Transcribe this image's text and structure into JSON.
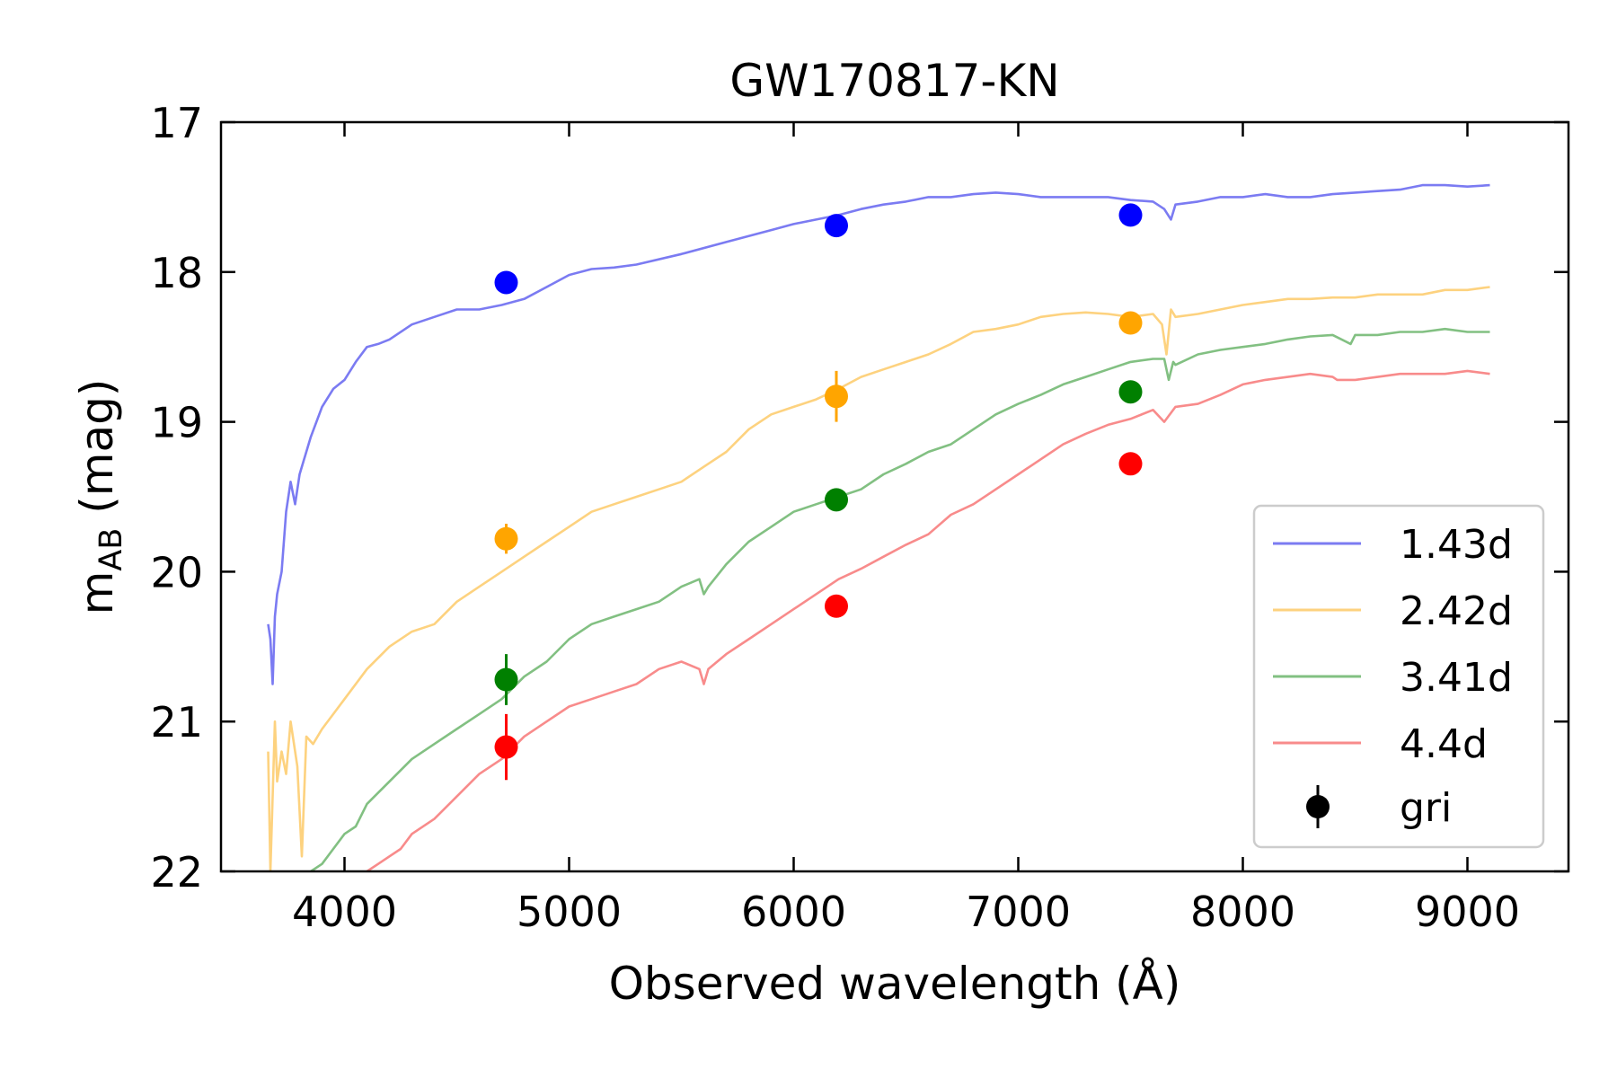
{
  "chart_data": {
    "type": "line",
    "title": "GW170817-KN",
    "xlabel": "Observed wavelength (Å)",
    "ylabel_main": "m",
    "ylabel_sub": "AB",
    "ylabel_unit": " (mag)",
    "xlim": [
      3450,
      9450
    ],
    "ylim": [
      22,
      17
    ],
    "y_inverted": true,
    "x_ticks": [
      4000,
      5000,
      6000,
      7000,
      8000,
      9000
    ],
    "y_ticks": [
      17,
      18,
      19,
      20,
      21,
      22
    ],
    "grid": false,
    "legend_position": "lower-right",
    "series": [
      {
        "name": "1.43d",
        "color": "#7b7bf2",
        "x": [
          3660,
          3670,
          3680,
          3690,
          3700,
          3720,
          3740,
          3760,
          3780,
          3800,
          3820,
          3850,
          3900,
          3950,
          4000,
          4050,
          4100,
          4150,
          4200,
          4300,
          4400,
          4500,
          4600,
          4700,
          4800,
          4900,
          5000,
          5100,
          5200,
          5300,
          5500,
          5700,
          5900,
          6000,
          6100,
          6200,
          6300,
          6400,
          6500,
          6600,
          6700,
          6800,
          6900,
          7000,
          7100,
          7200,
          7300,
          7400,
          7500,
          7600,
          7650,
          7680,
          7700,
          7800,
          7900,
          8000,
          8100,
          8200,
          8300,
          8400,
          8500,
          8600,
          8700,
          8800,
          8900,
          9000,
          9100
        ],
        "y": [
          20.35,
          20.45,
          20.75,
          20.3,
          20.15,
          20.0,
          19.6,
          19.4,
          19.55,
          19.35,
          19.25,
          19.1,
          18.9,
          18.78,
          18.72,
          18.6,
          18.5,
          18.48,
          18.45,
          18.35,
          18.3,
          18.25,
          18.25,
          18.22,
          18.18,
          18.1,
          18.02,
          17.98,
          17.97,
          17.95,
          17.88,
          17.8,
          17.72,
          17.68,
          17.65,
          17.62,
          17.58,
          17.55,
          17.53,
          17.5,
          17.5,
          17.48,
          17.47,
          17.48,
          17.5,
          17.5,
          17.5,
          17.5,
          17.52,
          17.53,
          17.58,
          17.65,
          17.55,
          17.53,
          17.5,
          17.5,
          17.48,
          17.5,
          17.5,
          17.48,
          17.47,
          17.46,
          17.45,
          17.42,
          17.42,
          17.43,
          17.42
        ]
      },
      {
        "name": "2.42d",
        "color": "#fdd27f",
        "x": [
          3660,
          3670,
          3680,
          3690,
          3700,
          3720,
          3740,
          3760,
          3790,
          3810,
          3830,
          3860,
          3900,
          3950,
          4000,
          4100,
          4200,
          4300,
          4400,
          4500,
          4600,
          4700,
          4800,
          4900,
          5000,
          5100,
          5200,
          5300,
          5400,
          5500,
          5600,
          5700,
          5800,
          5900,
          6000,
          6100,
          6200,
          6300,
          6400,
          6500,
          6600,
          6700,
          6800,
          6900,
          7000,
          7100,
          7200,
          7300,
          7400,
          7500,
          7600,
          7640,
          7660,
          7680,
          7700,
          7800,
          7900,
          8000,
          8100,
          8200,
          8300,
          8400,
          8500,
          8600,
          8700,
          8800,
          8900,
          9000,
          9100
        ],
        "y": [
          21.2,
          22.0,
          21.5,
          21.0,
          21.4,
          21.2,
          21.35,
          21.0,
          21.3,
          21.9,
          21.1,
          21.15,
          21.05,
          20.95,
          20.85,
          20.65,
          20.5,
          20.4,
          20.35,
          20.2,
          20.1,
          20.0,
          19.9,
          19.8,
          19.7,
          19.6,
          19.55,
          19.5,
          19.45,
          19.4,
          19.3,
          19.2,
          19.05,
          18.95,
          18.9,
          18.85,
          18.78,
          18.7,
          18.65,
          18.6,
          18.55,
          18.48,
          18.4,
          18.38,
          18.35,
          18.3,
          18.28,
          18.27,
          18.28,
          18.3,
          18.28,
          18.35,
          18.55,
          18.25,
          18.3,
          18.28,
          18.25,
          18.22,
          18.2,
          18.18,
          18.18,
          18.17,
          18.17,
          18.15,
          18.15,
          18.15,
          18.12,
          18.12,
          18.1
        ]
      },
      {
        "name": "3.41d",
        "color": "#82c082",
        "x": [
          3850,
          3900,
          3950,
          4000,
          4050,
          4100,
          4200,
          4300,
          4400,
          4500,
          4600,
          4700,
          4800,
          4900,
          5000,
          5100,
          5200,
          5300,
          5400,
          5500,
          5580,
          5600,
          5620,
          5700,
          5800,
          5900,
          6000,
          6100,
          6200,
          6300,
          6400,
          6500,
          6600,
          6700,
          6800,
          6900,
          7000,
          7100,
          7200,
          7300,
          7400,
          7500,
          7600,
          7650,
          7670,
          7690,
          7700,
          7800,
          7900,
          8000,
          8100,
          8200,
          8300,
          8400,
          8480,
          8500,
          8600,
          8700,
          8800,
          8900,
          9000,
          9100
        ],
        "y": [
          22.0,
          21.95,
          21.85,
          21.75,
          21.7,
          21.55,
          21.4,
          21.25,
          21.15,
          21.05,
          20.95,
          20.85,
          20.7,
          20.6,
          20.45,
          20.35,
          20.3,
          20.25,
          20.2,
          20.1,
          20.05,
          20.15,
          20.1,
          19.95,
          19.8,
          19.7,
          19.6,
          19.55,
          19.5,
          19.45,
          19.35,
          19.28,
          19.2,
          19.15,
          19.05,
          18.95,
          18.88,
          18.82,
          18.75,
          18.7,
          18.65,
          18.6,
          18.58,
          18.58,
          18.72,
          18.6,
          18.62,
          18.55,
          18.52,
          18.5,
          18.48,
          18.45,
          18.43,
          18.42,
          18.48,
          18.42,
          18.42,
          18.4,
          18.4,
          18.38,
          18.4,
          18.4
        ]
      },
      {
        "name": "4.4d",
        "color": "#f88b8b",
        "x": [
          4100,
          4150,
          4200,
          4250,
          4300,
          4400,
          4500,
          4600,
          4700,
          4800,
          4900,
          5000,
          5100,
          5200,
          5300,
          5400,
          5500,
          5580,
          5600,
          5620,
          5700,
          5800,
          5900,
          6000,
          6100,
          6200,
          6300,
          6400,
          6500,
          6600,
          6700,
          6800,
          6900,
          7000,
          7100,
          7200,
          7300,
          7400,
          7500,
          7600,
          7650,
          7700,
          7800,
          7900,
          8000,
          8100,
          8200,
          8300,
          8400,
          8420,
          8500,
          8600,
          8700,
          8800,
          8900,
          9000,
          9100
        ],
        "y": [
          22.0,
          21.95,
          21.9,
          21.85,
          21.75,
          21.65,
          21.5,
          21.35,
          21.25,
          21.1,
          21.0,
          20.9,
          20.85,
          20.8,
          20.75,
          20.65,
          20.6,
          20.65,
          20.75,
          20.65,
          20.55,
          20.45,
          20.35,
          20.25,
          20.15,
          20.05,
          19.98,
          19.9,
          19.82,
          19.75,
          19.62,
          19.55,
          19.45,
          19.35,
          19.25,
          19.15,
          19.08,
          19.02,
          18.98,
          18.92,
          19.0,
          18.9,
          18.88,
          18.82,
          18.75,
          18.72,
          18.7,
          18.68,
          18.7,
          18.72,
          18.72,
          18.7,
          18.68,
          18.68,
          18.68,
          18.66,
          18.68
        ]
      }
    ],
    "points": {
      "name": "gri",
      "marker_color": "#000000",
      "x": [
        4720,
        6190,
        7500
      ],
      "epochs": [
        {
          "epoch": "1.43d",
          "color": "#0000ff",
          "y": [
            18.07,
            17.69,
            17.62
          ],
          "yerr": [
            0.03,
            0.03,
            0.03
          ]
        },
        {
          "epoch": "2.42d",
          "color": "#ffa500",
          "y": [
            19.78,
            18.83,
            18.34
          ],
          "yerr": [
            0.1,
            0.17,
            0.05
          ]
        },
        {
          "epoch": "3.41d",
          "color": "#008000",
          "y": [
            20.72,
            19.52,
            18.8
          ],
          "yerr": [
            0.17,
            0.05,
            0.04
          ]
        },
        {
          "epoch": "4.4d",
          "color": "#ff0000",
          "y": [
            21.17,
            20.23,
            19.28
          ],
          "yerr": [
            0.22,
            0.05,
            0.04
          ]
        }
      ]
    }
  }
}
